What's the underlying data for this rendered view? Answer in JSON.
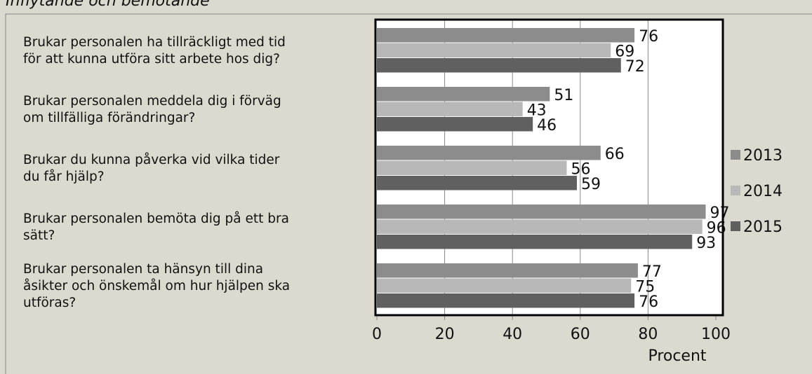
{
  "chart_data": {
    "type": "bar",
    "orientation": "horizontal",
    "title": "Inflytande och bemötande",
    "categories": [
      [
        "Brukar personalen ha tillräckligt med tid",
        "för att kunna utföra sitt arbete hos dig?"
      ],
      [
        "Brukar personalen meddela dig i förväg",
        "om tillfälliga förändringar?"
      ],
      [
        "Brukar du kunna påverka vid vilka tider",
        "du får hjälp?"
      ],
      [
        "Brukar personalen bemöta dig på ett bra",
        "sätt?"
      ],
      [
        "Brukar personalen ta hänsyn till dina",
        "åsikter och önskemål om hur hjälpen ska",
        "utföras?"
      ]
    ],
    "series": [
      {
        "name": "2013",
        "color": "#8c8c8c",
        "values": [
          76,
          51,
          66,
          97,
          77
        ]
      },
      {
        "name": "2014",
        "color": "#b8b8b8",
        "values": [
          69,
          43,
          56,
          96,
          75
        ]
      },
      {
        "name": "2015",
        "color": "#606060",
        "values": [
          72,
          46,
          59,
          93,
          76
        ]
      }
    ],
    "xlabel": "Procent",
    "xlim": [
      0,
      100
    ],
    "xticks": [
      0,
      20,
      40,
      60,
      80,
      100
    ],
    "grid": true,
    "legend": "right"
  }
}
